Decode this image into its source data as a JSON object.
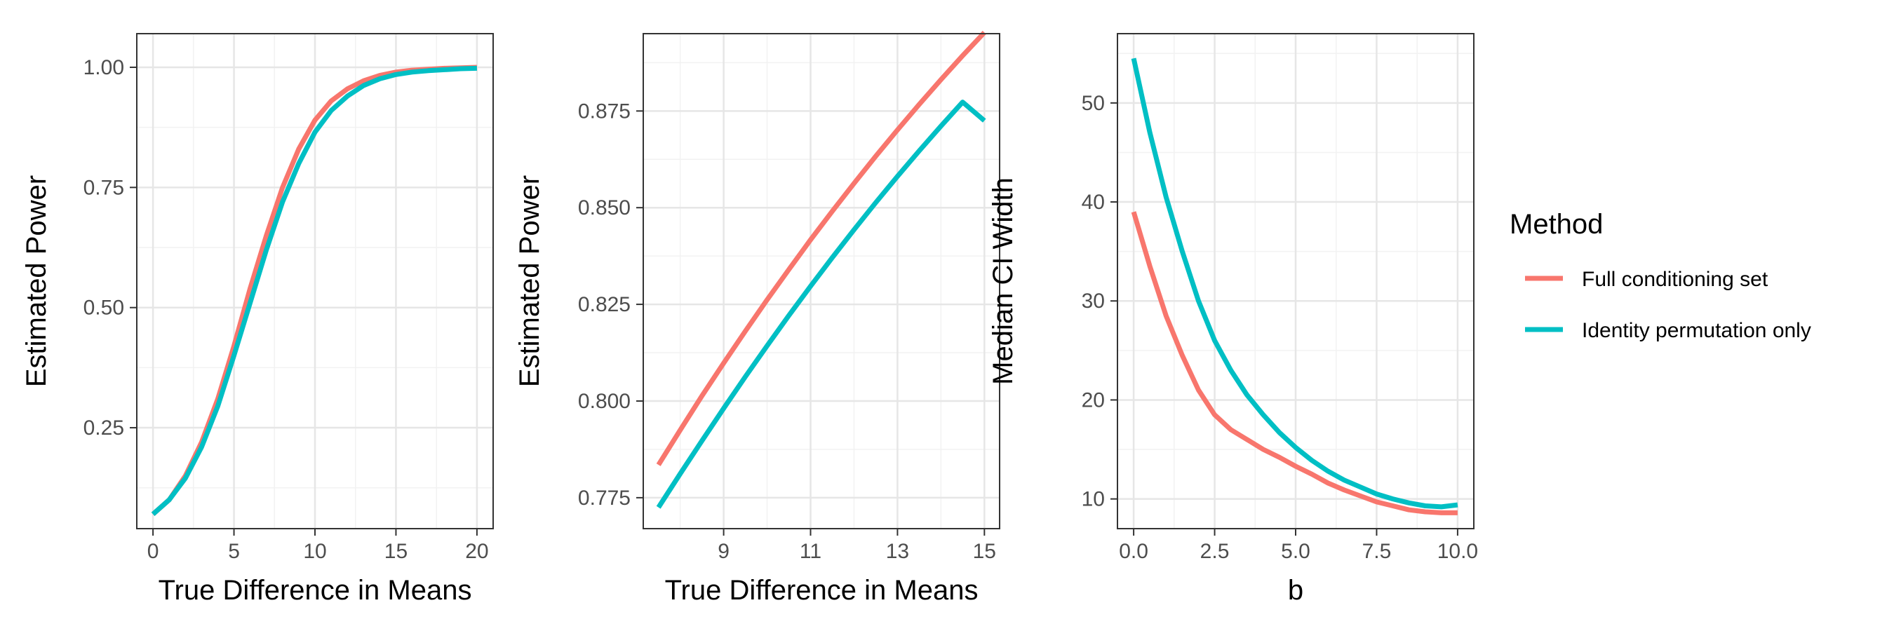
{
  "colors": {
    "full": "#F8766D",
    "identity": "#00BFC4",
    "grid_major": "#e6e6e6",
    "grid_minor": "#f2f2f2",
    "panel_border": "#333333"
  },
  "legend": {
    "title": "Method",
    "entries": [
      {
        "key": "full",
        "label": "Full conditioning set"
      },
      {
        "key": "identity",
        "label": "Identity permutation only"
      }
    ]
  },
  "chart_data": [
    {
      "type": "line",
      "xlabel": "True Difference in Means",
      "ylabel": "Estimated Power",
      "xlim": [
        -1,
        21
      ],
      "ylim": [
        0.04,
        1.07
      ],
      "xticks": [
        0,
        5,
        10,
        15,
        20
      ],
      "xtick_labels": [
        "0",
        "5",
        "10",
        "15",
        "20"
      ],
      "yticks": [
        0.25,
        0.5,
        0.75,
        1.0
      ],
      "ytick_labels": [
        "0.25",
        "0.50",
        "0.75",
        "1.00"
      ],
      "series": [
        {
          "key": "full",
          "name": "Full conditioning set",
          "x": [
            0,
            1,
            2,
            3,
            4,
            5,
            6,
            7,
            8,
            9,
            10,
            11,
            12,
            13,
            14,
            15,
            16,
            17,
            18,
            19,
            20
          ],
          "y": [
            0.07,
            0.1,
            0.15,
            0.22,
            0.31,
            0.42,
            0.54,
            0.65,
            0.75,
            0.83,
            0.89,
            0.93,
            0.955,
            0.972,
            0.983,
            0.99,
            0.994,
            0.996,
            0.998,
            0.999,
            1.0
          ]
        },
        {
          "key": "identity",
          "name": "Identity permutation only",
          "x": [
            0,
            1,
            2,
            3,
            4,
            5,
            6,
            7,
            8,
            9,
            10,
            11,
            12,
            13,
            14,
            15,
            16,
            17,
            18,
            19,
            20
          ],
          "y": [
            0.07,
            0.1,
            0.145,
            0.21,
            0.295,
            0.4,
            0.51,
            0.62,
            0.72,
            0.8,
            0.865,
            0.91,
            0.94,
            0.962,
            0.976,
            0.985,
            0.99,
            0.993,
            0.995,
            0.997,
            0.998
          ]
        }
      ]
    },
    {
      "type": "line",
      "xlabel": "True Difference in Means",
      "ylabel": "Estimated Power",
      "xlim": [
        7.15,
        15.35
      ],
      "ylim": [
        0.767,
        0.895
      ],
      "xticks": [
        9,
        11,
        13,
        15
      ],
      "xtick_labels": [
        "9",
        "11",
        "13",
        "15"
      ],
      "yticks": [
        0.775,
        0.8,
        0.825,
        0.85,
        0.875
      ],
      "ytick_labels": [
        "0.775",
        "0.800",
        "0.825",
        "0.850",
        "0.875"
      ],
      "series": [
        {
          "key": "full",
          "name": "Full conditioning set",
          "x": [
            7.5,
            8,
            8.5,
            9,
            9.5,
            10,
            10.5,
            11,
            11.5,
            12,
            12.5,
            13,
            13.5,
            14,
            14.5,
            15
          ],
          "y": [
            0.7835,
            0.7925,
            0.8013,
            0.8098,
            0.8181,
            0.8262,
            0.834,
            0.8417,
            0.8491,
            0.8563,
            0.8633,
            0.8701,
            0.8767,
            0.8831,
            0.8893,
            0.8953
          ]
        },
        {
          "key": "identity",
          "name": "Identity permutation only",
          "x": [
            7.5,
            8,
            8.5,
            9,
            9.5,
            10,
            10.5,
            11,
            11.5,
            12,
            12.5,
            13,
            13.5,
            14,
            14.5,
            15
          ],
          "y": [
            0.7725,
            0.7812,
            0.7897,
            0.7981,
            0.8063,
            0.8143,
            0.8221,
            0.8297,
            0.8371,
            0.8443,
            0.8513,
            0.8581,
            0.8647,
            0.8711,
            0.8773,
            0.8725
          ]
        }
      ]
    },
    {
      "type": "line",
      "xlabel": "b",
      "ylabel": "Median CI Width",
      "xlim": [
        -0.5,
        10.5
      ],
      "ylim": [
        7,
        57
      ],
      "xticks": [
        0,
        2.5,
        5,
        7.5,
        10
      ],
      "xtick_labels": [
        "0.0",
        "2.5",
        "5.0",
        "7.5",
        "10.0"
      ],
      "yticks": [
        10,
        20,
        30,
        40,
        50
      ],
      "ytick_labels": [
        "10",
        "20",
        "30",
        "40",
        "50"
      ],
      "series": [
        {
          "key": "full",
          "name": "Full conditioning set",
          "x": [
            0,
            0.5,
            1,
            1.5,
            2,
            2.5,
            3,
            3.5,
            4,
            4.5,
            5,
            5.5,
            6,
            6.5,
            7,
            7.5,
            8,
            8.5,
            9,
            9.5,
            10
          ],
          "y": [
            39,
            33.5,
            28.5,
            24.5,
            21,
            18.5,
            17,
            16,
            15,
            14.2,
            13.3,
            12.5,
            11.6,
            10.9,
            10.3,
            9.7,
            9.3,
            8.9,
            8.7,
            8.6,
            8.6
          ]
        },
        {
          "key": "identity",
          "name": "Identity permutation only",
          "x": [
            0,
            0.5,
            1,
            1.5,
            2,
            2.5,
            3,
            3.5,
            4,
            4.5,
            5,
            5.5,
            6,
            6.5,
            7,
            7.5,
            8,
            8.5,
            9,
            9.5,
            10
          ],
          "y": [
            54.5,
            47,
            40.5,
            35,
            30,
            26,
            23,
            20.5,
            18.5,
            16.7,
            15.2,
            13.9,
            12.8,
            11.9,
            11.2,
            10.5,
            10,
            9.6,
            9.3,
            9.2,
            9.4
          ]
        }
      ]
    }
  ]
}
